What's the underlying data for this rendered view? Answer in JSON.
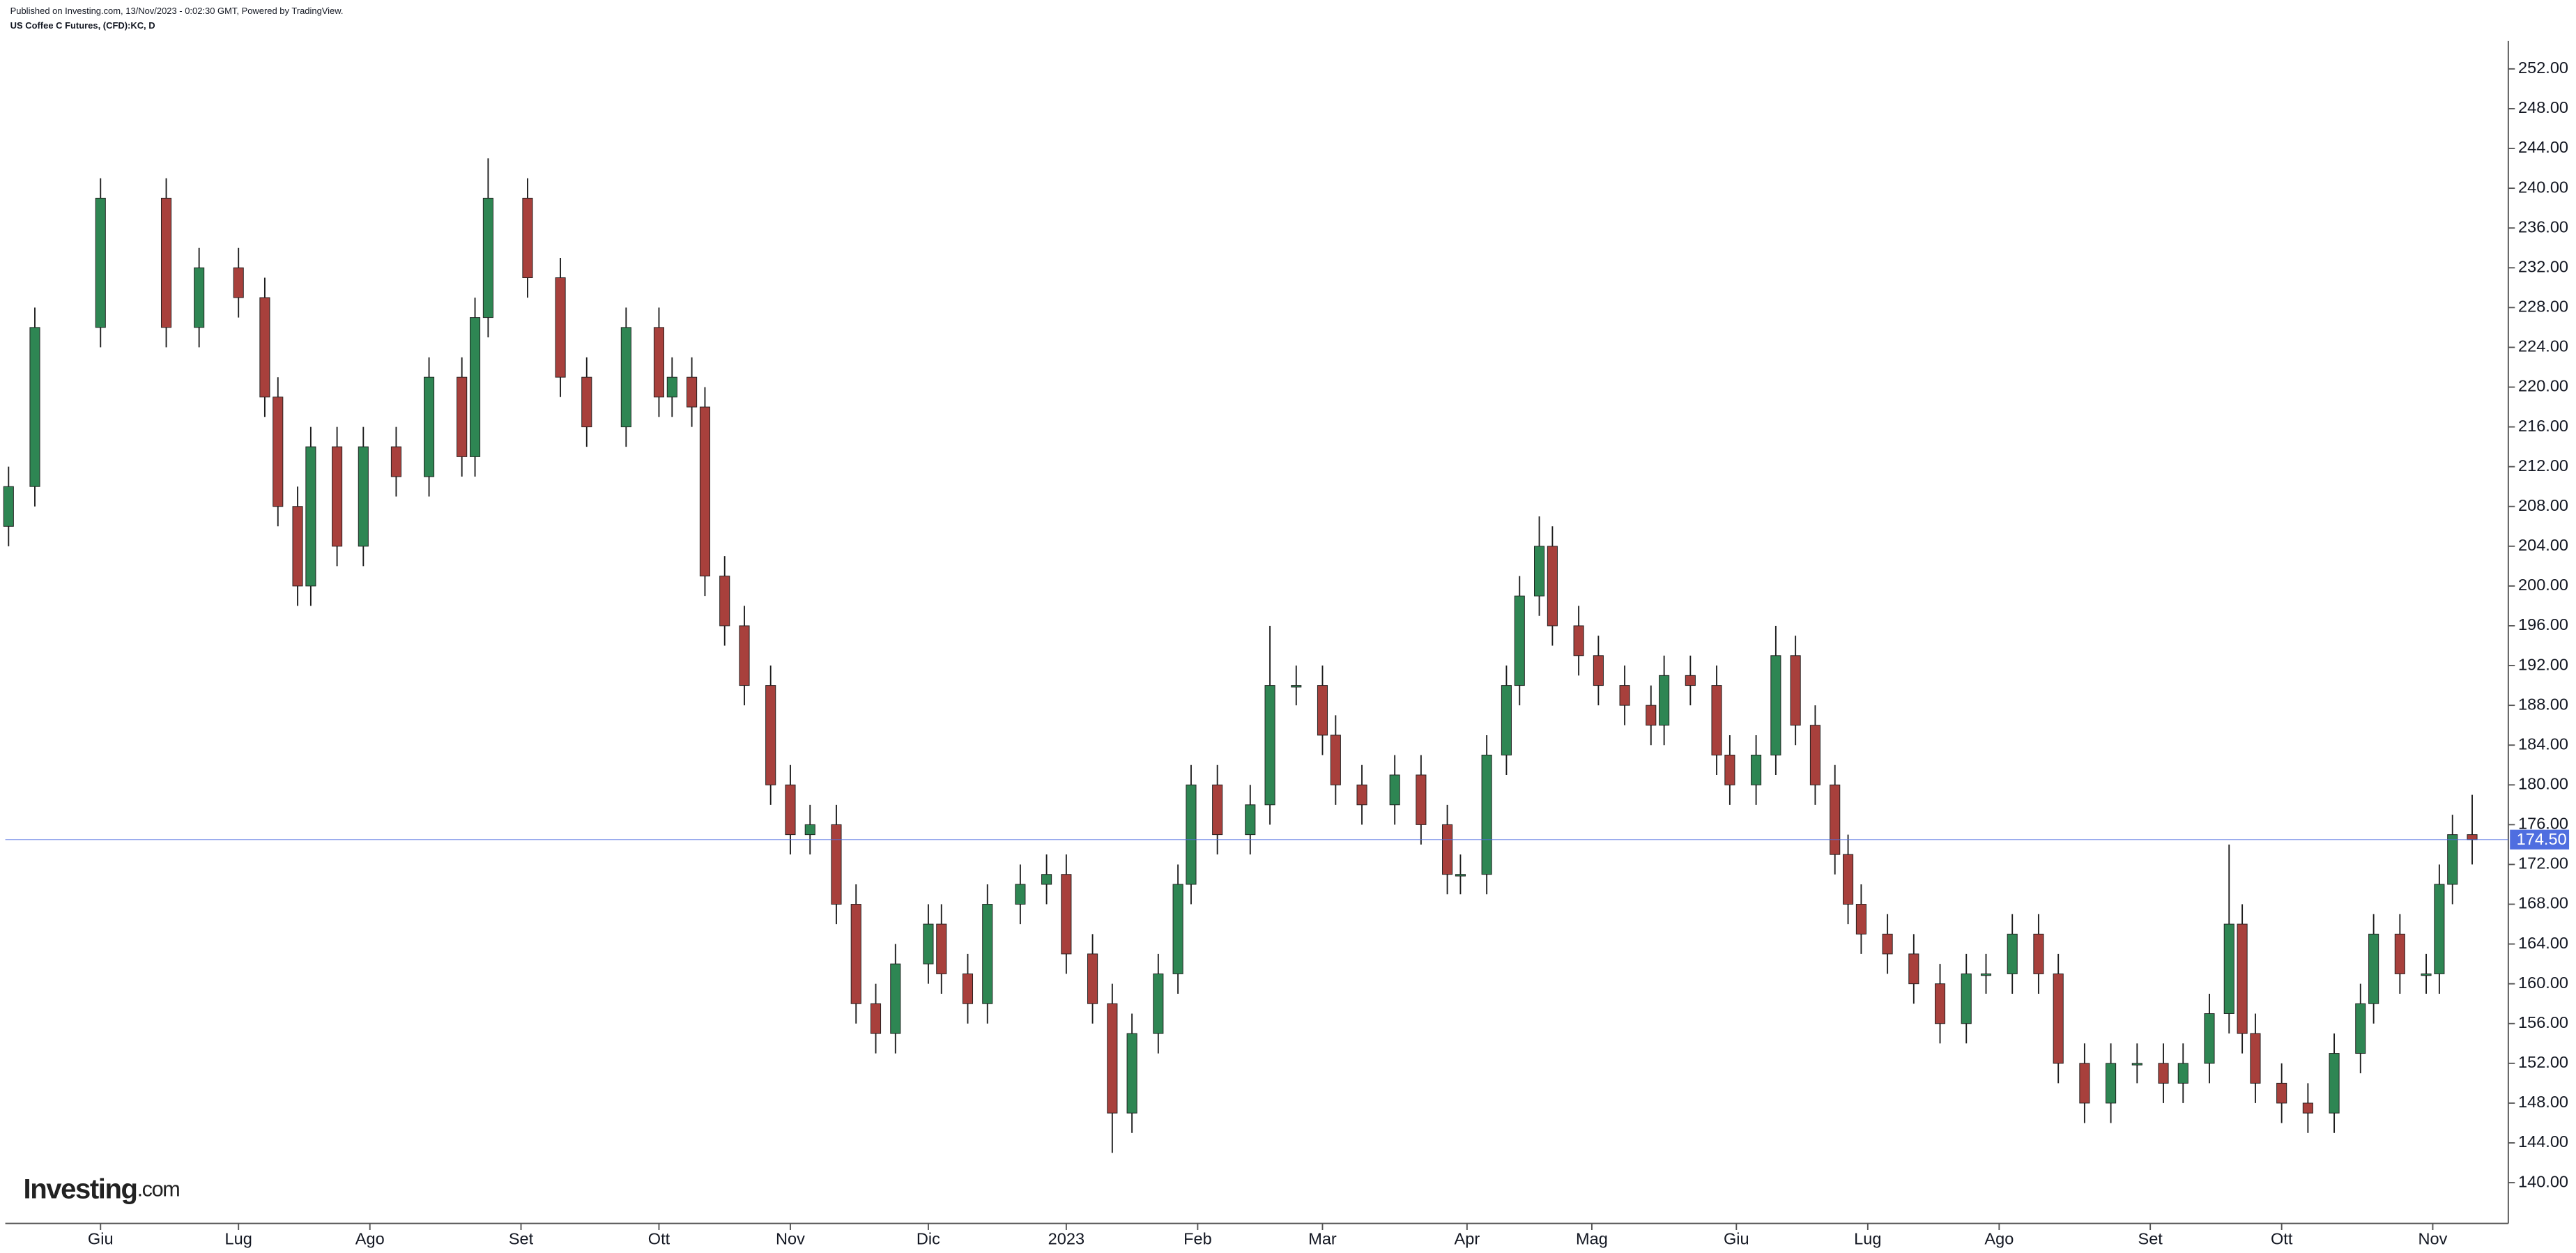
{
  "source_note": "Published on Investing.com, 13/Nov/2023 - 0:02:30 GMT, Powered by TradingView.",
  "logo": {
    "name": "Investing",
    "suffix": ".com"
  },
  "chart_data": {
    "type": "candlestick",
    "title": "US Coffee C Futures, (CFD):KC, D",
    "up_color": "#2e8653",
    "down_color": "#a8403c",
    "wick_color": "#1e1e1e",
    "x": [
      0,
      4,
      14,
      24,
      29,
      35,
      39,
      41,
      44,
      46,
      50,
      54,
      59,
      64,
      69,
      71,
      73,
      79,
      84,
      88,
      94,
      99,
      101,
      104,
      106,
      109,
      112,
      116,
      119,
      122,
      126,
      129,
      132,
      135,
      140,
      142,
      146,
      149,
      154,
      158,
      161,
      165,
      168,
      171,
      175,
      178,
      180,
      184,
      189,
      192,
      196,
      200,
      202,
      206,
      211,
      215,
      219,
      221,
      225,
      228,
      230,
      233,
      235,
      239,
      242,
      246,
      250,
      252,
      256,
      260,
      262,
      266,
      269,
      272,
      275,
      278,
      280,
      282,
      286,
      290,
      294,
      298,
      301,
      305,
      309,
      312,
      316,
      320,
      324,
      328,
      331,
      335,
      338,
      340,
      342,
      346,
      350,
      354,
      358,
      360,
      364,
      368,
      370,
      372,
      375
    ],
    "open": [
      206,
      210,
      226,
      239,
      226,
      232,
      229,
      219,
      208,
      200,
      214,
      204,
      214,
      211,
      221,
      213,
      227,
      239,
      231,
      221,
      216,
      226,
      219,
      221,
      218,
      201,
      196,
      190,
      180,
      175,
      176,
      168,
      158,
      155,
      162,
      166,
      161,
      158,
      168,
      170,
      171,
      163,
      158,
      147,
      155,
      161,
      170,
      180,
      175,
      178,
      190,
      190,
      185,
      180,
      178,
      181,
      176,
      171,
      171,
      183,
      190,
      199,
      204,
      196,
      193,
      190,
      188,
      186,
      191,
      190,
      183,
      180,
      183,
      193,
      186,
      180,
      173,
      168,
      165,
      163,
      160,
      156,
      161,
      161,
      165,
      161,
      152,
      148,
      152,
      152,
      150,
      152,
      157,
      166,
      155,
      150,
      148,
      147,
      153,
      158,
      165,
      161,
      161,
      170,
      175
    ],
    "high": [
      212,
      228,
      241,
      241,
      234,
      234,
      231,
      221,
      210,
      216,
      216,
      216,
      216,
      223,
      223,
      229,
      243,
      241,
      233,
      223,
      228,
      228,
      223,
      223,
      220,
      203,
      198,
      192,
      182,
      178,
      178,
      170,
      160,
      164,
      168,
      168,
      163,
      170,
      172,
      173,
      173,
      165,
      160,
      157,
      163,
      172,
      182,
      182,
      180,
      196,
      192,
      192,
      187,
      182,
      183,
      183,
      178,
      173,
      185,
      192,
      201,
      207,
      206,
      198,
      195,
      192,
      190,
      193,
      193,
      192,
      185,
      185,
      196,
      195,
      188,
      182,
      175,
      170,
      167,
      165,
      162,
      163,
      163,
      167,
      167,
      163,
      154,
      154,
      154,
      154,
      154,
      159,
      174,
      168,
      157,
      152,
      150,
      155,
      160,
      167,
      167,
      163,
      172,
      177,
      179
    ],
    "low": [
      204,
      208,
      224,
      224,
      224,
      227,
      217,
      206,
      198,
      198,
      202,
      202,
      209,
      209,
      211,
      211,
      225,
      229,
      219,
      214,
      214,
      217,
      217,
      216,
      199,
      194,
      188,
      178,
      173,
      173,
      166,
      156,
      153,
      153,
      160,
      159,
      156,
      156,
      166,
      168,
      161,
      156,
      143,
      145,
      153,
      159,
      168,
      173,
      173,
      176,
      188,
      183,
      178,
      176,
      176,
      174,
      169,
      169,
      169,
      181,
      188,
      197,
      194,
      191,
      188,
      186,
      184,
      184,
      188,
      181,
      178,
      178,
      181,
      184,
      178,
      171,
      166,
      163,
      161,
      158,
      154,
      154,
      159,
      159,
      159,
      150,
      146,
      146,
      150,
      148,
      148,
      150,
      155,
      153,
      148,
      146,
      145,
      145,
      151,
      156,
      159,
      159,
      159,
      168,
      172
    ],
    "close": [
      210,
      226,
      239,
      226,
      232,
      229,
      219,
      208,
      200,
      214,
      204,
      214,
      211,
      221,
      213,
      227,
      239,
      231,
      221,
      216,
      226,
      219,
      221,
      218,
      201,
      196,
      190,
      180,
      175,
      176,
      168,
      158,
      155,
      162,
      166,
      161,
      158,
      168,
      170,
      171,
      163,
      158,
      147,
      155,
      161,
      170,
      180,
      175,
      178,
      190,
      190,
      185,
      180,
      178,
      181,
      176,
      171,
      171,
      183,
      190,
      199,
      204,
      196,
      193,
      190,
      188,
      186,
      191,
      190,
      183,
      180,
      183,
      193,
      186,
      180,
      173,
      168,
      165,
      163,
      160,
      156,
      161,
      161,
      165,
      161,
      152,
      148,
      152,
      152,
      150,
      152,
      157,
      166,
      155,
      150,
      148,
      147,
      153,
      158,
      165,
      161,
      161,
      170,
      175,
      174.5
    ],
    "xlim": [
      -0.5,
      380.5
    ],
    "xticks": [
      {
        "value": 14,
        "label": "Giu"
      },
      {
        "value": 35,
        "label": "Lug"
      },
      {
        "value": 55,
        "label": "Ago"
      },
      {
        "value": 78,
        "label": "Set"
      },
      {
        "value": 99,
        "label": "Ott"
      },
      {
        "value": 119,
        "label": "Nov"
      },
      {
        "value": 140,
        "label": "Dic"
      },
      {
        "value": 161,
        "label": "2023"
      },
      {
        "value": 181,
        "label": "Feb"
      },
      {
        "value": 200,
        "label": "Mar"
      },
      {
        "value": 222,
        "label": "Apr"
      },
      {
        "value": 241,
        "label": "Mag"
      },
      {
        "value": 263,
        "label": "Giu"
      },
      {
        "value": 283,
        "label": "Lug"
      },
      {
        "value": 303,
        "label": "Ago"
      },
      {
        "value": 326,
        "label": "Set"
      },
      {
        "value": 346,
        "label": "Ott"
      },
      {
        "value": 369,
        "label": "Nov"
      }
    ],
    "ylim": [
      135.9,
      254.8
    ],
    "yticks": [
      {
        "value": 140,
        "label": "140.00"
      },
      {
        "value": 144,
        "label": "144.00"
      },
      {
        "value": 148,
        "label": "148.00"
      },
      {
        "value": 152,
        "label": "152.00"
      },
      {
        "value": 156,
        "label": "156.00"
      },
      {
        "value": 160,
        "label": "160.00"
      },
      {
        "value": 164,
        "label": "164.00"
      },
      {
        "value": 168,
        "label": "168.00"
      },
      {
        "value": 172,
        "label": "172.00"
      },
      {
        "value": 176,
        "label": "176.00"
      },
      {
        "value": 180,
        "label": "180.00"
      },
      {
        "value": 184,
        "label": "184.00"
      },
      {
        "value": 188,
        "label": "188.00"
      },
      {
        "value": 192,
        "label": "192.00"
      },
      {
        "value": 196,
        "label": "196.00"
      },
      {
        "value": 200,
        "label": "200.00"
      },
      {
        "value": 204,
        "label": "204.00"
      },
      {
        "value": 208,
        "label": "208.00"
      },
      {
        "value": 212,
        "label": "212.00"
      },
      {
        "value": 216,
        "label": "216.00"
      },
      {
        "value": 220,
        "label": "220.00"
      },
      {
        "value": 224,
        "label": "224.00"
      },
      {
        "value": 228,
        "label": "228.00"
      },
      {
        "value": 232,
        "label": "232.00"
      },
      {
        "value": 236,
        "label": "236.00"
      },
      {
        "value": 240,
        "label": "240.00"
      },
      {
        "value": 244,
        "label": "244.00"
      },
      {
        "value": 248,
        "label": "248.00"
      },
      {
        "value": 252,
        "label": "252.00"
      }
    ],
    "last_price": {
      "value": 174.5,
      "label": "174.50"
    },
    "last_price_color": "#4f6ee0",
    "grid": false
  }
}
